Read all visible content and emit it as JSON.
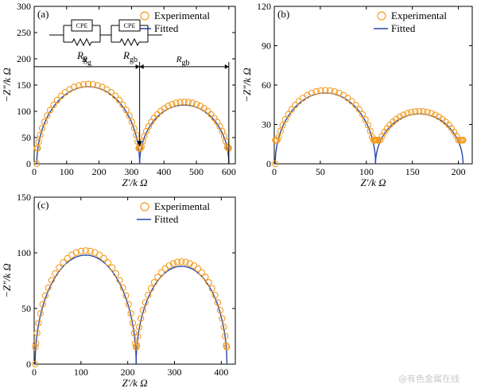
{
  "chart_data": [
    {
      "panel": "(a)",
      "type": "scatter",
      "xlabel": "Z′/k Ω",
      "ylabel": "−Z″/k Ω",
      "xlim": [
        0,
        620
      ],
      "ylim": [
        0,
        300
      ],
      "xticks": [
        0,
        100,
        200,
        300,
        400,
        500,
        600
      ],
      "yticks": [
        0,
        50,
        100,
        150,
        200,
        250,
        300
      ],
      "legend": [
        "Experimental",
        "Fitted"
      ],
      "arcs": [
        {
          "start": 8,
          "end": 325,
          "peak_fit": 147,
          "peak_exp": 152
        },
        {
          "start": 325,
          "end": 600,
          "peak_fit": 112,
          "peak_exp": 118
        }
      ],
      "valley_y": 33,
      "annotations": {
        "circuit": {
          "cpe": "CPE",
          "rg": "R",
          "rg_sub": "g",
          "rgb": "R",
          "rgb_sub": "gb"
        },
        "dim_y": 185,
        "dim_x": [
          0,
          325,
          600
        ],
        "dim_labels": [
          {
            "t": "R",
            "s": "g"
          },
          {
            "t": "R",
            "s": "gb"
          }
        ]
      }
    },
    {
      "panel": "(b)",
      "type": "scatter",
      "xlabel": "Z′/k Ω",
      "ylabel": "−Z″/k Ω",
      "xlim": [
        0,
        215
      ],
      "ylim": [
        0,
        120
      ],
      "xticks": [
        0,
        50,
        100,
        150,
        200
      ],
      "yticks": [
        0,
        30,
        60,
        90,
        120
      ],
      "legend": [
        "Experimental",
        "Fitted"
      ],
      "arcs": [
        {
          "start": 1,
          "end": 110,
          "peak_fit": 54,
          "peak_exp": 56
        },
        {
          "start": 110,
          "end": 205,
          "peak_fit": 38,
          "peak_exp": 40
        }
      ],
      "valley_y": 20
    },
    {
      "panel": "(c)",
      "type": "scatter",
      "xlabel": "Z′/k Ω",
      "ylabel": "−Z″/k Ω",
      "xlim": [
        0,
        430
      ],
      "ylim": [
        0,
        150
      ],
      "xticks": [
        0,
        100,
        200,
        300,
        400
      ],
      "yticks": [
        0,
        50,
        100,
        150
      ],
      "legend": [
        "Experimental",
        "Fitted"
      ],
      "arcs": [
        {
          "start": 2,
          "end": 218,
          "peak_fit": 98,
          "peak_exp": 102
        },
        {
          "start": 218,
          "end": 412,
          "peak_fit": 88,
          "peak_exp": 92
        }
      ],
      "valley_y": 17
    }
  ],
  "colors": {
    "experimental": "#f39c1f",
    "fitted": "#2846a8",
    "axis": "#000000"
  },
  "watermark": "@有色金属在线"
}
